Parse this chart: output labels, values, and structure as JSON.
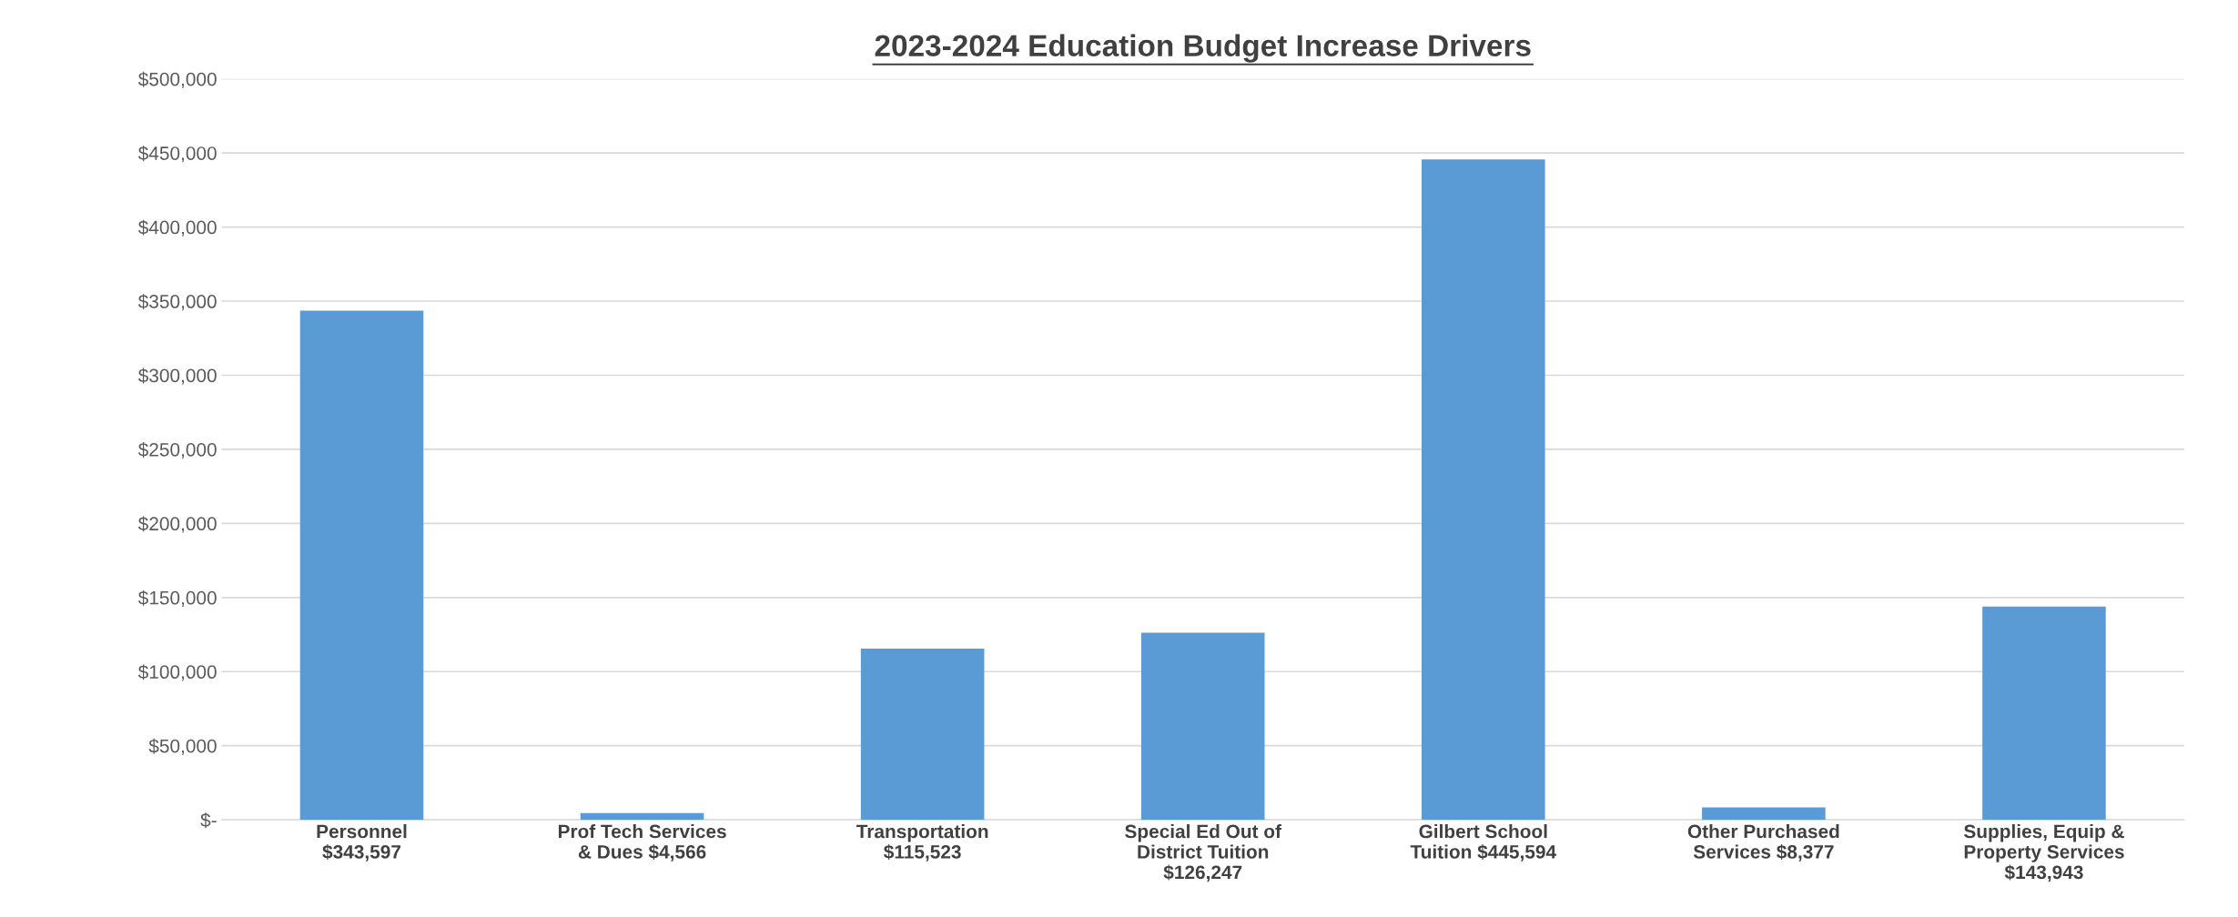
{
  "chart_data": {
    "type": "bar",
    "title": "2023-2024 Education Budget Increase Drivers",
    "categories": [
      "Personnel\n$343,597",
      "Prof Tech Services\n& Dues $4,566",
      "Transportation\n$115,523",
      "Special Ed Out of\nDistrict Tuition\n$126,247",
      "Gilbert School\nTuition $445,594",
      "Other Purchased\nServices $8,377",
      "Supplies, Equip &\nProperty Services\n$143,943"
    ],
    "values": [
      343597,
      4566,
      115523,
      126247,
      445594,
      8377,
      143943
    ],
    "color": "#5b9bd5",
    "ylim": [
      0,
      500000
    ],
    "yticks": [
      {
        "value": 0,
        "label": "$-"
      },
      {
        "value": 50000,
        "label": "$50,000"
      },
      {
        "value": 100000,
        "label": "$100,000"
      },
      {
        "value": 150000,
        "label": "$150,000"
      },
      {
        "value": 200000,
        "label": "$200,000"
      },
      {
        "value": 250000,
        "label": "$250,000"
      },
      {
        "value": 300000,
        "label": "$300,000"
      },
      {
        "value": 350000,
        "label": "$350,000"
      },
      {
        "value": 400000,
        "label": "$400,000"
      },
      {
        "value": 450000,
        "label": "$450,000"
      },
      {
        "value": 500000,
        "label": "$500,000"
      }
    ],
    "grid": "y"
  }
}
